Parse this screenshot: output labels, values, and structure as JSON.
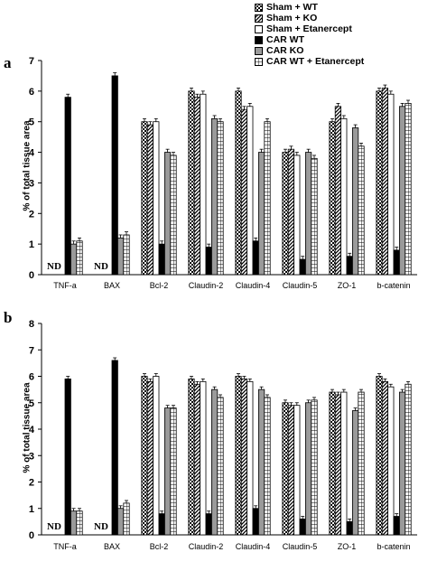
{
  "legend": [
    {
      "label": "Sham + WT",
      "pattern": "checker"
    },
    {
      "label": "Sham + KO",
      "pattern": "diag"
    },
    {
      "label": "Sham + Etanercept",
      "pattern": "white"
    },
    {
      "label": "CAR WT",
      "pattern": "black"
    },
    {
      "label": "CAR KO",
      "pattern": "gray"
    },
    {
      "label": "CAR WT + Etanercept",
      "pattern": "grid"
    }
  ],
  "chart_data": [
    {
      "type": "bar",
      "panel": "a",
      "ylabel": "% of total tissue area",
      "ylim": [
        0,
        7
      ],
      "yticks": [
        0,
        1,
        2,
        3,
        4,
        5,
        6,
        7
      ],
      "categories": [
        "TNF-a",
        "BAX",
        "Bcl-2",
        "Claudin-2",
        "Claudin-4",
        "Claudin-5",
        "ZO-1",
        "b-catenin"
      ],
      "series": [
        {
          "name": "Sham + WT",
          "values": [
            null,
            null,
            5.0,
            6.0,
            6.0,
            4.0,
            5.0,
            6.0
          ]
        },
        {
          "name": "Sham + KO",
          "values": [
            null,
            null,
            4.9,
            5.8,
            5.4,
            4.1,
            5.5,
            6.1
          ]
        },
        {
          "name": "Sham + Etanercept",
          "values": [
            null,
            null,
            5.0,
            5.9,
            5.5,
            3.9,
            5.1,
            5.9
          ]
        },
        {
          "name": "CAR WT",
          "values": [
            5.8,
            6.5,
            1.0,
            0.9,
            1.1,
            0.5,
            0.6,
            0.8
          ]
        },
        {
          "name": "CAR KO",
          "values": [
            1.0,
            1.2,
            4.0,
            5.1,
            4.0,
            4.0,
            4.8,
            5.5
          ]
        },
        {
          "name": "CAR WT + Etanercept",
          "values": [
            1.1,
            1.3,
            3.9,
            5.0,
            5.0,
            3.8,
            4.2,
            5.6
          ]
        }
      ],
      "nd_labels": [
        "ND",
        "ND"
      ]
    },
    {
      "type": "bar",
      "panel": "b",
      "ylabel": "% of total tissue area",
      "ylim": [
        0,
        8
      ],
      "yticks": [
        0,
        1,
        2,
        3,
        4,
        5,
        6,
        7,
        8
      ],
      "categories": [
        "TNF-a",
        "BAX",
        "Bcl-2",
        "Claudin-2",
        "Claudin-4",
        "Claudin-5",
        "ZO-1",
        "b-catenin"
      ],
      "series": [
        {
          "name": "Sham + WT",
          "values": [
            null,
            null,
            6.0,
            5.9,
            6.0,
            5.0,
            5.4,
            6.0
          ]
        },
        {
          "name": "Sham + KO",
          "values": [
            null,
            null,
            5.8,
            5.7,
            5.9,
            4.9,
            5.3,
            5.8
          ]
        },
        {
          "name": "Sham + Etanercept",
          "values": [
            null,
            null,
            6.0,
            5.8,
            5.8,
            4.9,
            5.4,
            5.6
          ]
        },
        {
          "name": "CAR WT",
          "values": [
            5.9,
            6.6,
            0.8,
            0.8,
            1.0,
            0.6,
            0.5,
            0.7
          ]
        },
        {
          "name": "CAR KO",
          "values": [
            0.9,
            1.0,
            4.8,
            5.5,
            5.5,
            5.0,
            4.7,
            5.4
          ]
        },
        {
          "name": "CAR WT + Etanercept",
          "values": [
            0.9,
            1.2,
            4.8,
            5.2,
            5.2,
            5.1,
            5.4,
            5.7
          ]
        }
      ],
      "nd_labels": [
        "ND",
        "ND"
      ]
    }
  ]
}
